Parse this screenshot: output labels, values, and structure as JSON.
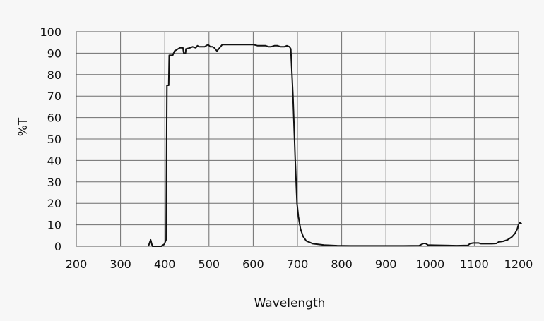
{
  "chart_data": {
    "type": "line",
    "title": "",
    "xlabel": "Wavelength",
    "ylabel": "%T",
    "xlim": [
      200,
      1200
    ],
    "ylim": [
      0,
      100
    ],
    "x_ticks": [
      200,
      300,
      400,
      500,
      600,
      700,
      800,
      900,
      1000,
      1100,
      1200
    ],
    "y_ticks": [
      0,
      10,
      20,
      30,
      40,
      50,
      60,
      70,
      80,
      90,
      100
    ],
    "grid": true,
    "legend": "none",
    "line_color": "#111111",
    "series": [
      {
        "values": [
          [
            363,
            0
          ],
          [
            368,
            3
          ],
          [
            372,
            0
          ],
          [
            392,
            0
          ],
          [
            399,
            1
          ],
          [
            403,
            3
          ],
          [
            405,
            75
          ],
          [
            409,
            75
          ],
          [
            410,
            89
          ],
          [
            418,
            89
          ],
          [
            422,
            91
          ],
          [
            430,
            92
          ],
          [
            434,
            92.5
          ],
          [
            441,
            92.5
          ],
          [
            443,
            90
          ],
          [
            447,
            90
          ],
          [
            448,
            92
          ],
          [
            457,
            92.5
          ],
          [
            463,
            93
          ],
          [
            470,
            92.5
          ],
          [
            474,
            93.5
          ],
          [
            478,
            93
          ],
          [
            482,
            93
          ],
          [
            490,
            93
          ],
          [
            498,
            94
          ],
          [
            503,
            93
          ],
          [
            508,
            93
          ],
          [
            512,
            92.5
          ],
          [
            518,
            91
          ],
          [
            522,
            92
          ],
          [
            530,
            94
          ],
          [
            535,
            94
          ],
          [
            545,
            94
          ],
          [
            600,
            94
          ],
          [
            610,
            93.5
          ],
          [
            622,
            93.5
          ],
          [
            628,
            93.5
          ],
          [
            635,
            93
          ],
          [
            640,
            93
          ],
          [
            648,
            93.5
          ],
          [
            655,
            93.5
          ],
          [
            662,
            93
          ],
          [
            670,
            93
          ],
          [
            676,
            93.5
          ],
          [
            682,
            93
          ],
          [
            685,
            92
          ],
          [
            690,
            70
          ],
          [
            695,
            40
          ],
          [
            699,
            20
          ],
          [
            702,
            14
          ],
          [
            707,
            8
          ],
          [
            713,
            4.5
          ],
          [
            720,
            2.5
          ],
          [
            735,
            1.2
          ],
          [
            760,
            0.6
          ],
          [
            790,
            0.3
          ],
          [
            820,
            0.2
          ],
          [
            860,
            0.2
          ],
          [
            900,
            0.2
          ],
          [
            940,
            0.2
          ],
          [
            975,
            0.3
          ],
          [
            985,
            1.3
          ],
          [
            990,
            1.3
          ],
          [
            995,
            0.6
          ],
          [
            1010,
            0.5
          ],
          [
            1060,
            0.3
          ],
          [
            1085,
            0.4
          ],
          [
            1090,
            1.2
          ],
          [
            1097,
            1.5
          ],
          [
            1110,
            1.5
          ],
          [
            1115,
            1.2
          ],
          [
            1125,
            1.2
          ],
          [
            1140,
            1.2
          ],
          [
            1150,
            1.3
          ],
          [
            1155,
            2.0
          ],
          [
            1165,
            2.3
          ],
          [
            1175,
            3.0
          ],
          [
            1185,
            4.3
          ],
          [
            1192,
            6.0
          ],
          [
            1197,
            8.0
          ],
          [
            1200,
            10.2
          ],
          [
            1203,
            11.0
          ],
          [
            1207,
            10.5
          ]
        ]
      }
    ]
  }
}
